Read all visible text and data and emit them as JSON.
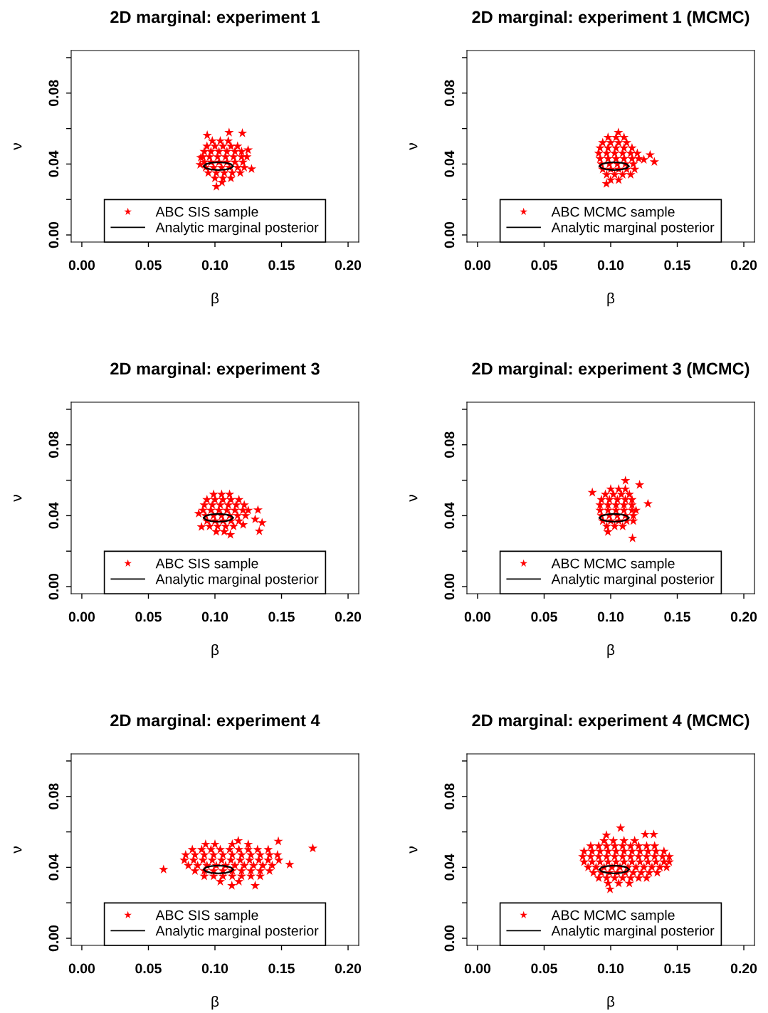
{
  "chart_data": [
    {
      "type": "scatter",
      "title": "2D marginal: experiment 1",
      "xlabel": "β",
      "ylabel": "ν",
      "xlim": [
        -0.008,
        0.208
      ],
      "ylim": [
        -0.004,
        0.104
      ],
      "xticks": [
        {
          "value": 0,
          "label": "0.00"
        },
        {
          "value": 0.05,
          "label": "0.05"
        },
        {
          "value": 0.1,
          "label": "0.10"
        },
        {
          "value": 0.15,
          "label": "0.15"
        },
        {
          "value": 0.2,
          "label": "0.20"
        }
      ],
      "yticks": [
        {
          "value": 0,
          "label": "0.00"
        },
        {
          "value": 0.02,
          "label": null
        },
        {
          "value": 0.04,
          "label": "0.04"
        },
        {
          "value": 0.06,
          "label": null
        },
        {
          "value": 0.08,
          "label": "0.08"
        },
        {
          "value": 0.1,
          "label": null
        }
      ],
      "legend": "bottom",
      "grid": false,
      "series": [
        {
          "type": "scatter",
          "name": "ABC SIS sample",
          "color": "#ff0000",
          "marker": "star",
          "x": [
            0.098,
            0.104,
            0.11,
            0.094,
            0.1,
            0.106,
            0.112,
            0.117,
            0.092,
            0.097,
            0.103,
            0.109,
            0.115,
            0.12,
            0.091,
            0.096,
            0.102,
            0.108,
            0.114,
            0.12,
            0.124,
            0.092,
            0.097,
            0.103,
            0.109,
            0.115,
            0.121,
            0.093,
            0.099,
            0.105,
            0.111,
            0.117,
            0.122,
            0.095,
            0.101,
            0.107,
            0.113,
            0.119,
            0.1,
            0.106,
            0.112,
            0.1106,
            0.1206,
            0.0942,
            0.1249,
            0.0894,
            0.0889,
            0.1275,
            0.1011,
            0.1053
          ],
          "values": [
            0.053,
            0.053,
            0.053,
            0.05,
            0.05,
            0.05,
            0.05,
            0.05,
            0.047,
            0.047,
            0.047,
            0.047,
            0.047,
            0.047,
            0.044,
            0.044,
            0.044,
            0.044,
            0.044,
            0.044,
            0.044,
            0.041,
            0.041,
            0.041,
            0.041,
            0.041,
            0.041,
            0.038,
            0.038,
            0.038,
            0.038,
            0.038,
            0.038,
            0.035,
            0.035,
            0.035,
            0.035,
            0.035,
            0.032,
            0.032,
            0.032,
            0.0578,
            0.0574,
            0.0562,
            0.0479,
            0.0436,
            0.0396,
            0.0372,
            0.0273,
            0.0297
          ]
        },
        {
          "type": "line",
          "name": "Analytic marginal posterior",
          "color": "#000000",
          "x": [
            0.0916,
            0.0931,
            0.0971,
            0.1026,
            0.1081,
            0.1121,
            0.1136
          ],
          "values": [
            0.0388,
            0.0399,
            0.0407,
            0.041,
            0.0407,
            0.0399,
            0.0388
          ]
        },
        {
          "type": "line",
          "color": "#000000",
          "x": [
            0.0916,
            0.0931,
            0.0971,
            0.1026,
            0.1081,
            0.1121,
            0.1136
          ],
          "values": [
            0.0388,
            0.0377,
            0.0369,
            0.0366,
            0.0369,
            0.0377,
            0.0388
          ]
        }
      ]
    },
    {
      "type": "scatter",
      "title": "2D marginal: experiment 1 (MCMC)",
      "xlabel": "β",
      "ylabel": "ν",
      "xlim": [
        -0.008,
        0.208
      ],
      "ylim": [
        -0.004,
        0.104
      ],
      "xticks": [
        {
          "value": 0,
          "label": "0.00"
        },
        {
          "value": 0.05,
          "label": "0.05"
        },
        {
          "value": 0.1,
          "label": "0.10"
        },
        {
          "value": 0.15,
          "label": "0.15"
        },
        {
          "value": 0.2,
          "label": "0.20"
        }
      ],
      "yticks": [
        {
          "value": 0,
          "label": "0.00"
        },
        {
          "value": 0.02,
          "label": null
        },
        {
          "value": 0.04,
          "label": "0.04"
        },
        {
          "value": 0.06,
          "label": null
        },
        {
          "value": 0.08,
          "label": "0.08"
        },
        {
          "value": 0.1,
          "label": null
        }
      ],
      "legend": "bottom",
      "grid": false,
      "series": [
        {
          "type": "scatter",
          "name": "ABC MCMC sample",
          "color": "#ff0000",
          "marker": "star",
          "x": [
            0.098,
            0.104,
            0.11,
            0.094,
            0.1,
            0.106,
            0.112,
            0.092,
            0.098,
            0.104,
            0.11,
            0.116,
            0.091,
            0.097,
            0.103,
            0.109,
            0.115,
            0.12,
            0.092,
            0.098,
            0.104,
            0.11,
            0.116,
            0.121,
            0.093,
            0.099,
            0.105,
            0.111,
            0.117,
            0.094,
            0.1,
            0.106,
            0.112,
            0.118,
            0.097,
            0.103,
            0.109,
            0.115,
            0.1,
            0.106,
            0.1296,
            0.1328,
            0.0968,
            0.1058,
            0.1249
          ],
          "values": [
            0.055,
            0.055,
            0.055,
            0.052,
            0.052,
            0.052,
            0.052,
            0.049,
            0.049,
            0.049,
            0.049,
            0.049,
            0.046,
            0.046,
            0.046,
            0.046,
            0.046,
            0.046,
            0.043,
            0.043,
            0.043,
            0.043,
            0.043,
            0.043,
            0.04,
            0.04,
            0.04,
            0.04,
            0.04,
            0.037,
            0.037,
            0.037,
            0.037,
            0.037,
            0.034,
            0.034,
            0.034,
            0.034,
            0.031,
            0.031,
            0.0451,
            0.0412,
            0.0289,
            0.0578,
            0.0424
          ]
        },
        {
          "type": "line",
          "name": "Analytic marginal posterior",
          "color": "#000000",
          "x": [
            0.0916,
            0.0931,
            0.0971,
            0.1026,
            0.1081,
            0.1121,
            0.1136
          ],
          "values": [
            0.0388,
            0.0399,
            0.0407,
            0.041,
            0.0407,
            0.0399,
            0.0388
          ]
        },
        {
          "type": "line",
          "color": "#000000",
          "x": [
            0.0916,
            0.0931,
            0.0971,
            0.1026,
            0.1081,
            0.1121,
            0.1136
          ],
          "values": [
            0.0388,
            0.0377,
            0.0369,
            0.0366,
            0.0369,
            0.0377,
            0.0388
          ]
        }
      ]
    },
    {
      "type": "scatter",
      "title": "2D marginal: experiment 3",
      "xlabel": "β",
      "ylabel": "ν",
      "xlim": [
        -0.008,
        0.208
      ],
      "ylim": [
        -0.004,
        0.104
      ],
      "xticks": [
        {
          "value": 0,
          "label": "0.00"
        },
        {
          "value": 0.05,
          "label": "0.05"
        },
        {
          "value": 0.1,
          "label": "0.10"
        },
        {
          "value": 0.15,
          "label": "0.15"
        },
        {
          "value": 0.2,
          "label": "0.20"
        }
      ],
      "yticks": [
        {
          "value": 0,
          "label": "0.00"
        },
        {
          "value": 0.02,
          "label": null
        },
        {
          "value": 0.04,
          "label": "0.04"
        },
        {
          "value": 0.06,
          "label": null
        },
        {
          "value": 0.08,
          "label": "0.08"
        },
        {
          "value": 0.1,
          "label": null
        }
      ],
      "legend": "bottom",
      "grid": false,
      "series": [
        {
          "type": "scatter",
          "name": "ABC SIS sample",
          "color": "#ff0000",
          "marker": "star",
          "x": [
            0.099,
            0.105,
            0.111,
            0.094,
            0.1,
            0.106,
            0.112,
            0.118,
            0.092,
            0.098,
            0.104,
            0.11,
            0.116,
            0.122,
            0.091,
            0.097,
            0.103,
            0.109,
            0.115,
            0.121,
            0.125,
            0.093,
            0.099,
            0.105,
            0.111,
            0.117,
            0.123,
            0.094,
            0.1,
            0.106,
            0.112,
            0.118,
            0.096,
            0.102,
            0.108,
            0.114,
            0.101,
            0.107,
            0.1323,
            0.1354,
            0.1302,
            0.1333,
            0.1212,
            0.0899,
            0.1116,
            0.0878
          ],
          "values": [
            0.052,
            0.052,
            0.052,
            0.049,
            0.049,
            0.049,
            0.049,
            0.049,
            0.046,
            0.046,
            0.046,
            0.046,
            0.046,
            0.046,
            0.043,
            0.043,
            0.043,
            0.043,
            0.043,
            0.043,
            0.043,
            0.04,
            0.04,
            0.04,
            0.04,
            0.04,
            0.04,
            0.037,
            0.037,
            0.037,
            0.037,
            0.037,
            0.034,
            0.034,
            0.034,
            0.034,
            0.031,
            0.031,
            0.0432,
            0.036,
            0.038,
            0.0313,
            0.0349,
            0.0337,
            0.0293,
            0.0412
          ]
        },
        {
          "type": "line",
          "name": "Analytic marginal posterior",
          "color": "#000000",
          "x": [
            0.0916,
            0.0931,
            0.0971,
            0.1026,
            0.1081,
            0.1121,
            0.1136
          ],
          "values": [
            0.0388,
            0.0399,
            0.0407,
            0.041,
            0.0407,
            0.0399,
            0.0388
          ]
        },
        {
          "type": "line",
          "color": "#000000",
          "x": [
            0.0916,
            0.0931,
            0.0971,
            0.1026,
            0.1081,
            0.1121,
            0.1136
          ],
          "values": [
            0.0388,
            0.0377,
            0.0369,
            0.0366,
            0.0369,
            0.0377,
            0.0388
          ]
        }
      ]
    },
    {
      "type": "scatter",
      "title": "2D marginal: experiment 3 (MCMC)",
      "xlabel": "β",
      "ylabel": "ν",
      "xlim": [
        -0.008,
        0.208
      ],
      "ylim": [
        -0.004,
        0.104
      ],
      "xticks": [
        {
          "value": 0,
          "label": "0.00"
        },
        {
          "value": 0.05,
          "label": "0.05"
        },
        {
          "value": 0.1,
          "label": "0.10"
        },
        {
          "value": 0.15,
          "label": "0.15"
        },
        {
          "value": 0.2,
          "label": "0.20"
        }
      ],
      "yticks": [
        {
          "value": 0,
          "label": "0.00"
        },
        {
          "value": 0.02,
          "label": null
        },
        {
          "value": 0.04,
          "label": "0.04"
        },
        {
          "value": 0.06,
          "label": null
        },
        {
          "value": 0.08,
          "label": "0.08"
        },
        {
          "value": 0.1,
          "label": null
        }
      ],
      "legend": "bottom",
      "grid": false,
      "series": [
        {
          "type": "scatter",
          "name": "ABC MCMC sample",
          "color": "#ff0000",
          "marker": "star",
          "x": [
            0.1,
            0.106,
            0.111,
            0.096,
            0.102,
            0.108,
            0.114,
            0.093,
            0.099,
            0.105,
            0.111,
            0.116,
            0.092,
            0.098,
            0.104,
            0.11,
            0.116,
            0.092,
            0.098,
            0.104,
            0.11,
            0.116,
            0.119,
            0.093,
            0.099,
            0.105,
            0.111,
            0.117,
            0.094,
            0.1,
            0.106,
            0.112,
            0.117,
            0.097,
            0.103,
            0.109,
            0.0862,
            0.1111,
            0.1217,
            0.128,
            0.1164,
            0.0979
          ],
          "values": [
            0.055,
            0.055,
            0.055,
            0.052,
            0.052,
            0.052,
            0.052,
            0.049,
            0.049,
            0.049,
            0.049,
            0.049,
            0.046,
            0.046,
            0.046,
            0.046,
            0.046,
            0.043,
            0.043,
            0.043,
            0.043,
            0.043,
            0.043,
            0.04,
            0.04,
            0.04,
            0.04,
            0.04,
            0.037,
            0.037,
            0.037,
            0.037,
            0.037,
            0.034,
            0.034,
            0.034,
            0.0531,
            0.0598,
            0.0574,
            0.0467,
            0.0273,
            0.0309
          ]
        },
        {
          "type": "line",
          "name": "Analytic marginal posterior",
          "color": "#000000",
          "x": [
            0.0916,
            0.0931,
            0.0971,
            0.1026,
            0.1081,
            0.1121,
            0.1136
          ],
          "values": [
            0.0388,
            0.0399,
            0.0407,
            0.041,
            0.0407,
            0.0399,
            0.0388
          ]
        },
        {
          "type": "line",
          "color": "#000000",
          "x": [
            0.0916,
            0.0931,
            0.0971,
            0.1026,
            0.1081,
            0.1121,
            0.1136
          ],
          "values": [
            0.0388,
            0.0377,
            0.0369,
            0.0366,
            0.0369,
            0.0377,
            0.0388
          ]
        }
      ]
    },
    {
      "type": "scatter",
      "title": "2D marginal: experiment 4",
      "xlabel": "β",
      "ylabel": "ν",
      "xlim": [
        -0.008,
        0.208
      ],
      "ylim": [
        -0.004,
        0.104
      ],
      "xticks": [
        {
          "value": 0,
          "label": "0.00"
        },
        {
          "value": 0.05,
          "label": "0.05"
        },
        {
          "value": 0.1,
          "label": "0.10"
        },
        {
          "value": 0.15,
          "label": "0.15"
        },
        {
          "value": 0.2,
          "label": "0.20"
        }
      ],
      "yticks": [
        {
          "value": 0,
          "label": "0.00"
        },
        {
          "value": 0.02,
          "label": null
        },
        {
          "value": 0.04,
          "label": "0.04"
        },
        {
          "value": 0.06,
          "label": null
        },
        {
          "value": 0.08,
          "label": "0.08"
        },
        {
          "value": 0.1,
          "label": null
        }
      ],
      "legend": "bottom",
      "grid": false,
      "series": [
        {
          "type": "scatter",
          "name": "ABC SIS sample",
          "color": "#ff0000",
          "marker": "star",
          "x": [
            0.093,
            0.1,
            0.113,
            0.125,
            0.083,
            0.09,
            0.097,
            0.104,
            0.111,
            0.118,
            0.125,
            0.132,
            0.14,
            0.078,
            0.085,
            0.092,
            0.099,
            0.106,
            0.113,
            0.12,
            0.127,
            0.134,
            0.141,
            0.147,
            0.077,
            0.084,
            0.091,
            0.098,
            0.105,
            0.112,
            0.119,
            0.126,
            0.133,
            0.14,
            0.148,
            0.08,
            0.087,
            0.094,
            0.101,
            0.108,
            0.115,
            0.122,
            0.129,
            0.136,
            0.143,
            0.085,
            0.092,
            0.099,
            0.106,
            0.113,
            0.12,
            0.127,
            0.134,
            0.141,
            0.092,
            0.099,
            0.106,
            0.113,
            0.12,
            0.127,
            0.134,
            0.104,
            0.118,
            0.0614,
            0.1735,
            0.1561,
            0.1476,
            0.1302,
            0.1127,
            0.1175
          ],
          "values": [
            0.053,
            0.053,
            0.053,
            0.053,
            0.05,
            0.05,
            0.05,
            0.05,
            0.05,
            0.05,
            0.05,
            0.05,
            0.05,
            0.047,
            0.047,
            0.047,
            0.047,
            0.047,
            0.047,
            0.047,
            0.047,
            0.047,
            0.047,
            0.047,
            0.044,
            0.044,
            0.044,
            0.044,
            0.044,
            0.044,
            0.044,
            0.044,
            0.044,
            0.044,
            0.044,
            0.041,
            0.041,
            0.041,
            0.041,
            0.041,
            0.041,
            0.041,
            0.041,
            0.041,
            0.041,
            0.038,
            0.038,
            0.038,
            0.038,
            0.038,
            0.038,
            0.038,
            0.038,
            0.038,
            0.035,
            0.035,
            0.035,
            0.035,
            0.035,
            0.035,
            0.035,
            0.032,
            0.032,
            0.0388,
            0.0507,
            0.0416,
            0.0547,
            0.0297,
            0.0297,
            0.055
          ]
        },
        {
          "type": "line",
          "name": "Analytic marginal posterior",
          "color": "#000000",
          "x": [
            0.0916,
            0.0931,
            0.0971,
            0.1026,
            0.1081,
            0.1121,
            0.1136
          ],
          "values": [
            0.0388,
            0.0399,
            0.0407,
            0.041,
            0.0407,
            0.0399,
            0.0388
          ]
        },
        {
          "type": "line",
          "color": "#000000",
          "x": [
            0.0916,
            0.0931,
            0.0971,
            0.1026,
            0.1081,
            0.1121,
            0.1136
          ],
          "values": [
            0.0388,
            0.0377,
            0.0369,
            0.0366,
            0.0369,
            0.0377,
            0.0388
          ]
        }
      ]
    },
    {
      "type": "scatter",
      "title": "2D marginal: experiment 4 (MCMC)",
      "xlabel": "β",
      "ylabel": "ν",
      "xlim": [
        -0.008,
        0.208
      ],
      "ylim": [
        -0.004,
        0.104
      ],
      "xticks": [
        {
          "value": 0,
          "label": "0.00"
        },
        {
          "value": 0.05,
          "label": "0.05"
        },
        {
          "value": 0.1,
          "label": "0.10"
        },
        {
          "value": 0.15,
          "label": "0.15"
        },
        {
          "value": 0.2,
          "label": "0.20"
        }
      ],
      "yticks": [
        {
          "value": 0,
          "label": "0.00"
        },
        {
          "value": 0.02,
          "label": null
        },
        {
          "value": 0.04,
          "label": "0.04"
        },
        {
          "value": 0.06,
          "label": null
        },
        {
          "value": 0.08,
          "label": "0.08"
        },
        {
          "value": 0.1,
          "label": null
        }
      ],
      "legend": "bottom",
      "grid": false,
      "series": [
        {
          "type": "scatter",
          "name": "ABC MCMC sample",
          "color": "#ff0000",
          "marker": "star",
          "x": [
            0.095,
            0.102,
            0.11,
            0.118,
            0.085,
            0.091,
            0.097,
            0.103,
            0.109,
            0.115,
            0.121,
            0.127,
            0.133,
            0.08,
            0.086,
            0.092,
            0.098,
            0.104,
            0.11,
            0.116,
            0.122,
            0.128,
            0.134,
            0.14,
            0.079,
            0.085,
            0.091,
            0.097,
            0.103,
            0.109,
            0.115,
            0.121,
            0.127,
            0.133,
            0.139,
            0.144,
            0.08,
            0.086,
            0.092,
            0.098,
            0.104,
            0.11,
            0.116,
            0.122,
            0.128,
            0.134,
            0.14,
            0.144,
            0.083,
            0.089,
            0.095,
            0.101,
            0.107,
            0.113,
            0.119,
            0.125,
            0.131,
            0.137,
            0.142,
            0.087,
            0.093,
            0.099,
            0.105,
            0.111,
            0.117,
            0.123,
            0.129,
            0.135,
            0.091,
            0.097,
            0.103,
            0.109,
            0.115,
            0.121,
            0.127,
            0.098,
            0.106,
            0.114,
            0.1074,
            0.1259,
            0.1323,
            0.0995,
            0.0968
          ],
          "values": [
            0.055,
            0.055,
            0.055,
            0.055,
            0.052,
            0.052,
            0.052,
            0.052,
            0.052,
            0.052,
            0.052,
            0.052,
            0.052,
            0.049,
            0.049,
            0.049,
            0.049,
            0.049,
            0.049,
            0.049,
            0.049,
            0.049,
            0.049,
            0.049,
            0.046,
            0.046,
            0.046,
            0.046,
            0.046,
            0.046,
            0.046,
            0.046,
            0.046,
            0.046,
            0.046,
            0.046,
            0.043,
            0.043,
            0.043,
            0.043,
            0.043,
            0.043,
            0.043,
            0.043,
            0.043,
            0.043,
            0.043,
            0.043,
            0.04,
            0.04,
            0.04,
            0.04,
            0.04,
            0.04,
            0.04,
            0.04,
            0.04,
            0.04,
            0.04,
            0.037,
            0.037,
            0.037,
            0.037,
            0.037,
            0.037,
            0.037,
            0.037,
            0.037,
            0.034,
            0.034,
            0.034,
            0.034,
            0.034,
            0.034,
            0.034,
            0.031,
            0.031,
            0.031,
            0.0622,
            0.0586,
            0.0586,
            0.0277,
            0.0582
          ]
        },
        {
          "type": "line",
          "name": "Analytic marginal posterior",
          "color": "#000000",
          "x": [
            0.0916,
            0.0931,
            0.0971,
            0.1026,
            0.1081,
            0.1121,
            0.1136
          ],
          "values": [
            0.0388,
            0.0399,
            0.0407,
            0.041,
            0.0407,
            0.0399,
            0.0388
          ]
        },
        {
          "type": "line",
          "color": "#000000",
          "x": [
            0.0916,
            0.0931,
            0.0971,
            0.1026,
            0.1081,
            0.1121,
            0.1136
          ],
          "values": [
            0.0388,
            0.0377,
            0.0369,
            0.0366,
            0.0369,
            0.0377,
            0.0388
          ]
        }
      ]
    }
  ]
}
